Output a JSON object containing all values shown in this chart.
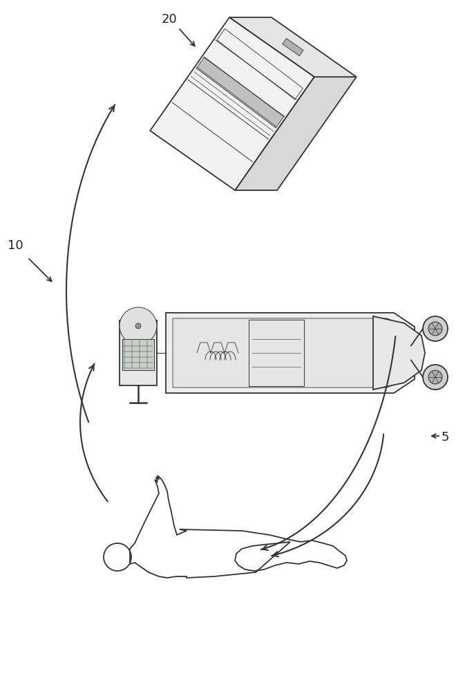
{
  "background_color": "#ffffff",
  "label_20": "20",
  "label_10": "10",
  "label_5": "5",
  "line_color": "#333333",
  "line_width": 1.3,
  "fig_width": 6.73,
  "fig_height": 10.0
}
